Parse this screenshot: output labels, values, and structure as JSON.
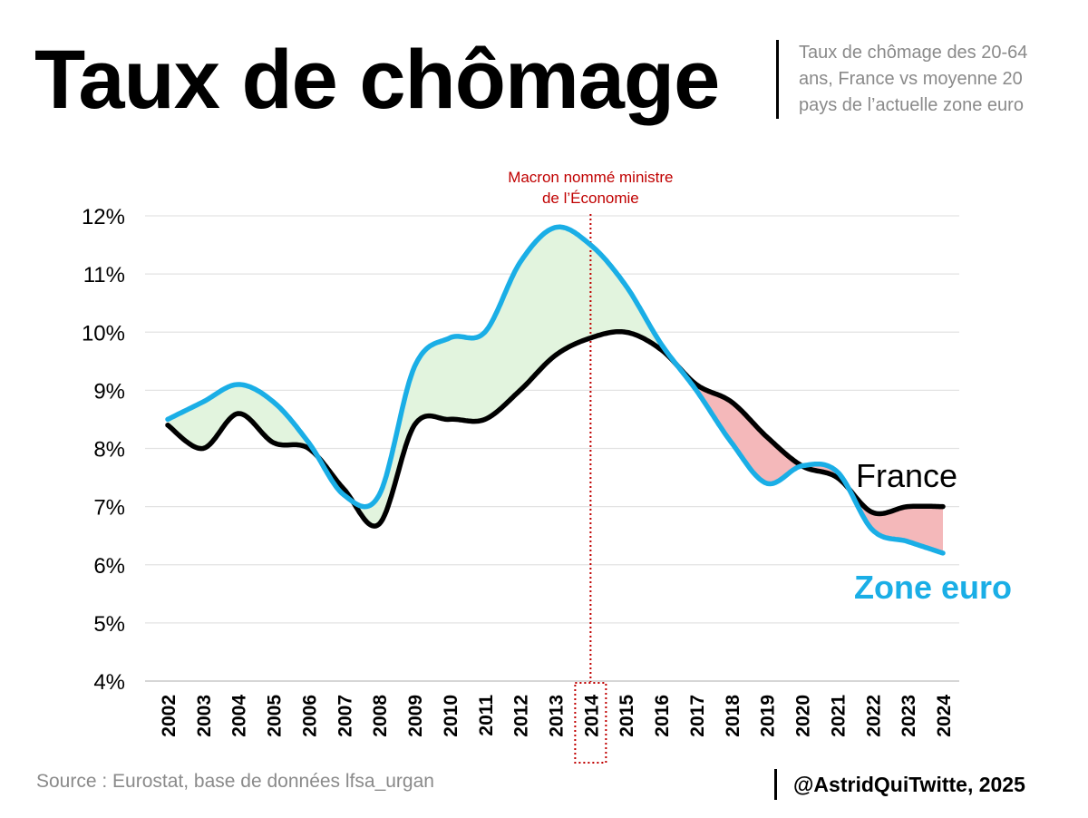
{
  "header": {
    "title": "Taux de chômage",
    "subtitle": "Taux de chômage des 20-64 ans, France vs moyenne 20 pays de l’actuelle zone euro"
  },
  "footer": {
    "source": "Source : Eurostat, base de données lfsa_urgan",
    "credit": "@AstridQuiTwitte, 2025"
  },
  "chart_data": {
    "type": "line",
    "title": "Taux de chômage",
    "x": [
      2002,
      2003,
      2004,
      2005,
      2006,
      2007,
      2008,
      2009,
      2010,
      2011,
      2012,
      2013,
      2014,
      2015,
      2016,
      2017,
      2018,
      2019,
      2020,
      2021,
      2022,
      2023,
      2024
    ],
    "x_tick_labels": [
      "2002",
      "2003",
      "2004",
      "2005",
      "2006",
      "2007",
      "2008",
      "2009",
      "2010",
      "2011",
      "2012",
      "2013",
      "2014",
      "2015",
      "2016",
      "2017",
      "2018",
      "2019",
      "2020",
      "2021",
      "2022",
      "2023",
      "2024"
    ],
    "y_tick_labels": [
      "4%",
      "5%",
      "6%",
      "7%",
      "8%",
      "9%",
      "10%",
      "11%",
      "12%"
    ],
    "ylim": [
      4,
      12
    ],
    "grid": true,
    "series": [
      {
        "name": "France",
        "color": "#000000",
        "values": [
          8.4,
          8.0,
          8.6,
          8.1,
          8.0,
          7.3,
          6.7,
          8.4,
          8.5,
          8.5,
          9.0,
          9.6,
          9.9,
          10.0,
          9.7,
          9.1,
          8.8,
          8.2,
          7.7,
          7.5,
          6.9,
          7.0,
          7.0
        ]
      },
      {
        "name": "Zone euro",
        "color": "#1aaee6",
        "values": [
          8.5,
          8.8,
          9.1,
          8.8,
          8.1,
          7.2,
          7.2,
          9.4,
          9.9,
          10.0,
          11.2,
          11.8,
          11.5,
          10.8,
          9.8,
          9.0,
          8.1,
          7.4,
          7.7,
          7.6,
          6.6,
          6.4,
          6.2
        ]
      }
    ],
    "fill_colors": {
      "euro_above": "#e2f4de",
      "france_above": "#f4b8ba"
    },
    "annotation": {
      "text_line1": "Macron nommé ministre",
      "text_line2": "de l’Économie",
      "x": 2014,
      "color": "#c00000"
    }
  }
}
